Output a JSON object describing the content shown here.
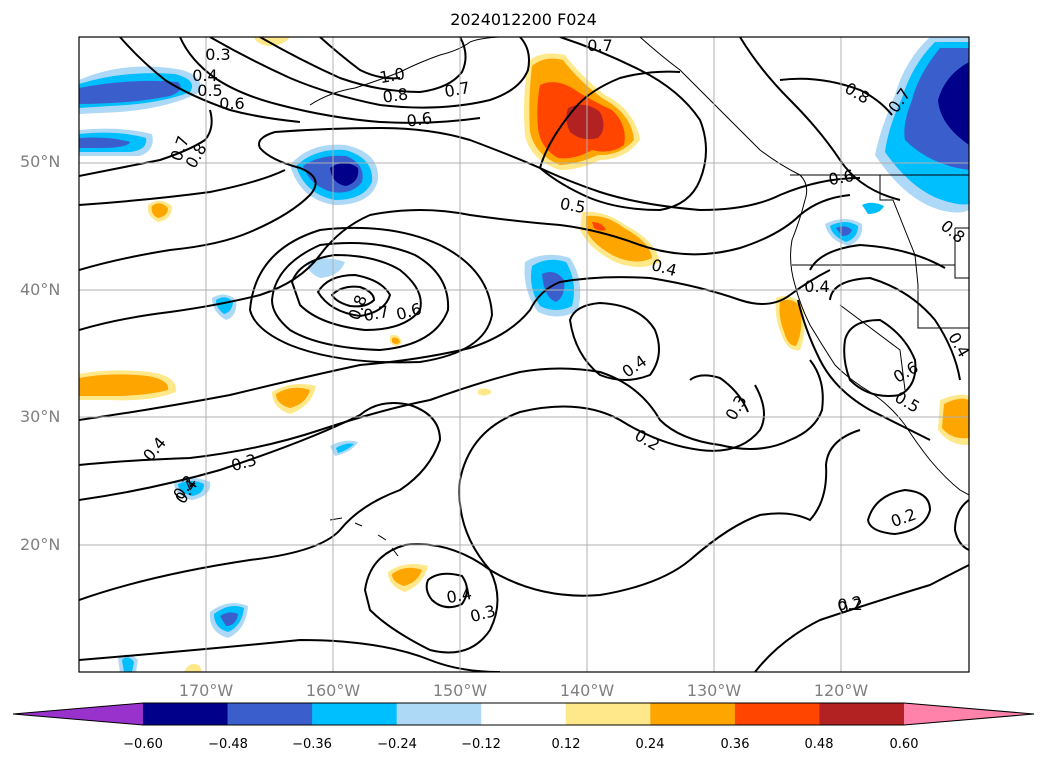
{
  "title": "2024012200 F024",
  "lat_labels": [
    "50°N",
    "40°N",
    "30°N",
    "20°N"
  ],
  "lon_labels": [
    "170°W",
    "160°W",
    "150°W",
    "140°W",
    "130°W",
    "120°W"
  ],
  "colorbar": {
    "ticks": [
      "−0.60",
      "−0.48",
      "−0.36",
      "−0.24",
      "−0.12",
      "0.12",
      "0.24",
      "0.36",
      "0.48",
      "0.60"
    ],
    "colors": [
      "#9932cc",
      "#00008b",
      "#3a5fcd",
      "#00bfff",
      "#add8f6",
      "#ffffff",
      "#ffe88a",
      "#ffa500",
      "#ff4500",
      "#b22222",
      "#ff82ab"
    ]
  },
  "contour_labels": [
    "0.3",
    "0.4",
    "0.5",
    "0.6",
    "0.7",
    "0.8",
    "1.0",
    "0.8",
    "0.7",
    "0.6",
    "0.7",
    "0.8",
    "0.7",
    "0.8",
    "0.5",
    "0.6",
    "0.4",
    "0.4",
    "0.8",
    "0.7",
    "0.6",
    "0.4",
    "0.3",
    "0.4",
    "0.4",
    "0.3",
    "0.2",
    "0.2",
    "0.2",
    "0.6",
    "0.5",
    "0.4",
    "0.4",
    "0.3",
    "0.2",
    "0.2"
  ]
}
